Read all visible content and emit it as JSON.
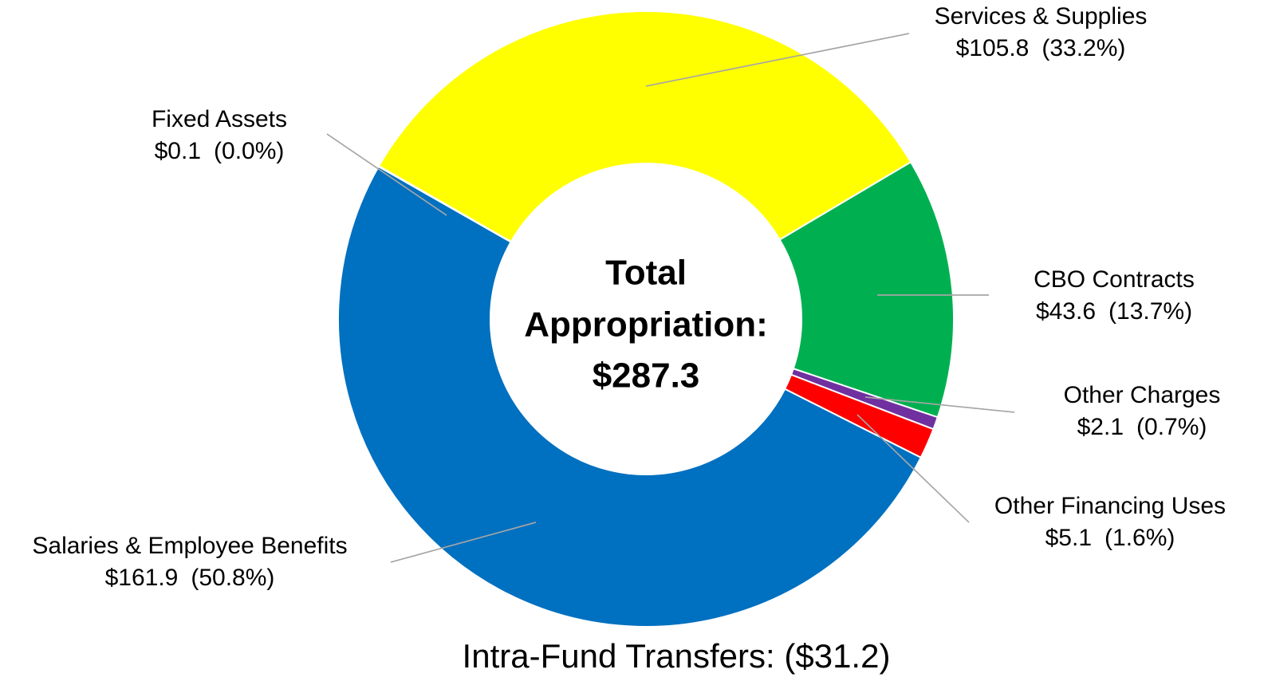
{
  "chart_data": {
    "type": "donut",
    "categories": [
      "Services & Supplies",
      "CBO Contracts",
      "Other Charges",
      "Other Financing Uses",
      "Salaries & Employee Benefits",
      "Fixed Assets"
    ],
    "values": [
      105.8,
      43.6,
      2.1,
      5.1,
      161.9,
      0.1
    ],
    "value_labels": [
      "$105.8",
      "$43.6",
      "$2.1",
      "$5.1",
      "$161.9",
      "$0.1"
    ],
    "percentages": [
      33.2,
      13.7,
      0.7,
      1.6,
      50.8,
      0.0
    ],
    "percentage_labels": [
      "(33.2%)",
      "(13.7%)",
      "(0.7%)",
      "(1.6%)",
      "(50.8%)",
      "(0.0%)"
    ],
    "colors": [
      "#ffff00",
      "#00b050",
      "#7030a0",
      "#ff0000",
      "#0070c0",
      "#a6a6a6"
    ],
    "center_text": [
      "Total",
      "Appropriation:",
      "$287.3"
    ],
    "footnote": "Intra-Fund Transfers: ($31.2)"
  }
}
